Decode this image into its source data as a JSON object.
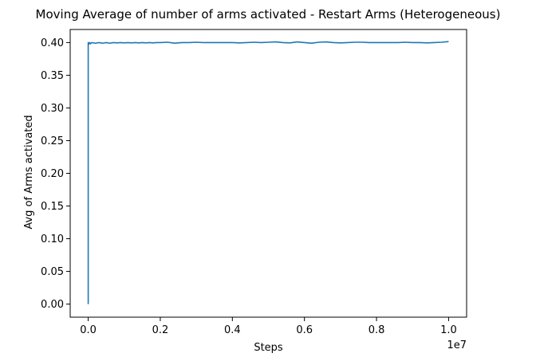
{
  "chart_data": {
    "type": "line",
    "title": "Moving Average of number of arms activated - Restart Arms (Heterogeneous)",
    "xlabel": "Steps",
    "ylabel": "Avg of Arms activated",
    "x_offset_label": "1e7",
    "xlim": [
      -0.05,
      1.05
    ],
    "ylim": [
      -0.02,
      0.42
    ],
    "x_ticks": [
      0.0,
      0.2,
      0.4,
      0.6,
      0.8,
      1.0
    ],
    "x_tick_labels": [
      "0.0",
      "0.2",
      "0.4",
      "0.6",
      "0.8",
      "1.0"
    ],
    "y_ticks": [
      0.0,
      0.05,
      0.1,
      0.15,
      0.2,
      0.25,
      0.3,
      0.35,
      0.4
    ],
    "y_tick_labels": [
      "0.00",
      "0.05",
      "0.10",
      "0.15",
      "0.20",
      "0.25",
      "0.30",
      "0.35",
      "0.40"
    ],
    "grid": false,
    "line_color": "#1f77b4",
    "series": [
      {
        "x": [
          0.0,
          0.0,
          0.001,
          0.002,
          0.004,
          0.006,
          0.01,
          0.02,
          0.03,
          0.04,
          0.05,
          0.06,
          0.07,
          0.08,
          0.09,
          0.1,
          0.11,
          0.12,
          0.13,
          0.14,
          0.15,
          0.16,
          0.17,
          0.18,
          0.19,
          0.2,
          0.22,
          0.24,
          0.26,
          0.28,
          0.3,
          0.32,
          0.34,
          0.36,
          0.38,
          0.4,
          0.42,
          0.44,
          0.46,
          0.48,
          0.5,
          0.52,
          0.54,
          0.56,
          0.58,
          0.6,
          0.62,
          0.64,
          0.66,
          0.68,
          0.7,
          0.72,
          0.74,
          0.76,
          0.78,
          0.8,
          0.82,
          0.84,
          0.86,
          0.88,
          0.9,
          0.92,
          0.94,
          0.96,
          0.98,
          1.0
        ],
        "y": [
          0.0,
          0.4,
          0.397,
          0.399,
          0.4,
          0.398,
          0.4,
          0.399,
          0.4,
          0.399,
          0.4,
          0.399,
          0.4,
          0.3995,
          0.4,
          0.3995,
          0.4,
          0.3995,
          0.4,
          0.3995,
          0.4,
          0.3995,
          0.4,
          0.3995,
          0.4,
          0.4,
          0.4005,
          0.399,
          0.4,
          0.4,
          0.4005,
          0.4,
          0.4,
          0.4,
          0.4,
          0.4,
          0.3995,
          0.4,
          0.4005,
          0.4,
          0.4005,
          0.401,
          0.4,
          0.3995,
          0.401,
          0.4,
          0.399,
          0.4005,
          0.401,
          0.4,
          0.3995,
          0.4,
          0.4005,
          0.4005,
          0.4,
          0.4,
          0.4,
          0.4,
          0.4,
          0.4005,
          0.4,
          0.4,
          0.3995,
          0.4,
          0.4005,
          0.4015
        ]
      }
    ]
  }
}
